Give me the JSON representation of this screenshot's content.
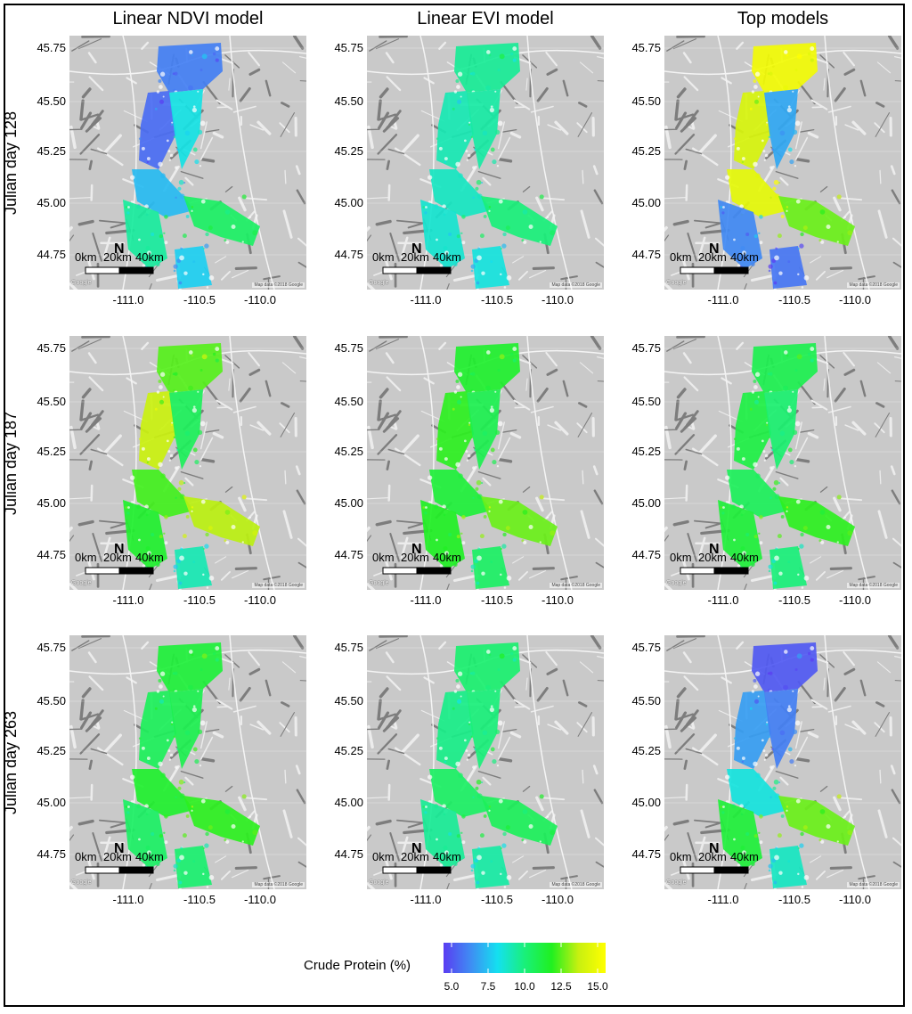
{
  "columns": [
    "Linear NDVI model",
    "Linear EVI model",
    "Top models"
  ],
  "rows": [
    "Julian day 128",
    "Julian day 187",
    "Julian day 263"
  ],
  "y_ticks": [
    "45.75",
    "45.50",
    "45.25",
    "45.00",
    "44.75"
  ],
  "x_ticks": [
    "-111.0",
    "-110.5",
    "-110.0"
  ],
  "scale_bar": [
    "0km",
    "20km",
    "40km"
  ],
  "map_attribution": "Map data ©2018 Google",
  "google_logo": "Google",
  "legend": {
    "title": "Crude Protein (%)",
    "ticks": [
      "5.0",
      "7.5",
      "10.0",
      "12.5",
      "15.0"
    ],
    "range": [
      5,
      15
    ],
    "colors": [
      "#5a3df2",
      "#3f8cf3",
      "#14e0f0",
      "#19f07a",
      "#20f020",
      "#c8f010",
      "#ffff00"
    ]
  },
  "panels": [
    {
      "row": 0,
      "col": 0,
      "protein": [
        6.4,
        6.0,
        8.5,
        7.6,
        9.5,
        10.4,
        8.0
      ]
    },
    {
      "row": 0,
      "col": 1,
      "protein": [
        9.6,
        9.2,
        9.4,
        9.0,
        8.8,
        10.0,
        8.6
      ]
    },
    {
      "row": 0,
      "col": 2,
      "protein": [
        14.6,
        13.8,
        7.2,
        14.2,
        6.6,
        12.4,
        6.2
      ]
    },
    {
      "row": 1,
      "col": 0,
      "protein": [
        12.2,
        13.4,
        10.6,
        12.0,
        11.4,
        13.2,
        9.2
      ]
    },
    {
      "row": 1,
      "col": 1,
      "protein": [
        11.4,
        11.8,
        10.8,
        11.2,
        11.6,
        12.4,
        10.4
      ]
    },
    {
      "row": 1,
      "col": 2,
      "protein": [
        10.8,
        11.0,
        10.2,
        10.6,
        11.2,
        11.8,
        10.0
      ]
    },
    {
      "row": 2,
      "col": 0,
      "protein": [
        11.2,
        10.6,
        10.8,
        11.4,
        10.4,
        11.8,
        10.2
      ]
    },
    {
      "row": 2,
      "col": 1,
      "protein": [
        10.2,
        9.8,
        10.0,
        10.4,
        9.6,
        10.6,
        9.4
      ]
    },
    {
      "row": 2,
      "col": 2,
      "protein": [
        5.6,
        7.0,
        6.4,
        8.6,
        11.2,
        12.4,
        9.0
      ]
    }
  ]
}
